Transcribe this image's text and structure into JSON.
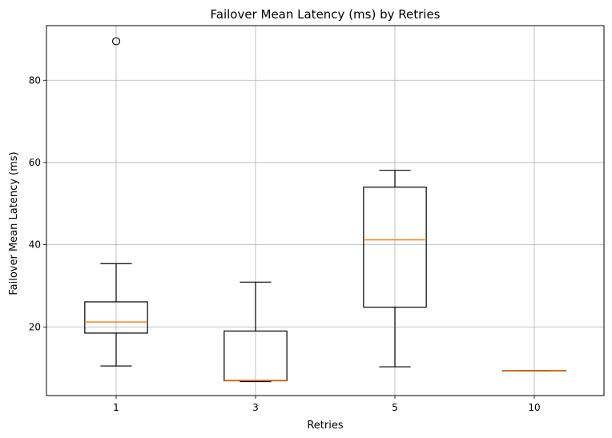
{
  "chart_data": {
    "type": "box",
    "title": "Failover Mean Latency (ms) by Retries",
    "xlabel": "Retries",
    "ylabel": "Failover Mean Latency (ms)",
    "categories": [
      "1",
      "3",
      "5",
      "10"
    ],
    "ylim": [
      3.3,
      93.3
    ],
    "yticks": [
      20,
      40,
      60,
      80
    ],
    "grid": true,
    "boxes": [
      {
        "category": "1",
        "whisker_low": 10.5,
        "q1": 18.5,
        "median": 21.2,
        "q3": 26.1,
        "whisker_high": 35.4,
        "outliers": [
          89.5
        ]
      },
      {
        "category": "3",
        "whisker_low": 6.7,
        "q1": 6.9,
        "median": 7.0,
        "q3": 19.0,
        "whisker_high": 30.9,
        "outliers": []
      },
      {
        "category": "5",
        "whisker_low": 10.3,
        "q1": 24.8,
        "median": 41.2,
        "q3": 54.0,
        "whisker_high": 58.1,
        "outliers": []
      },
      {
        "category": "10",
        "whisker_low": 9.3,
        "q1": 9.3,
        "median": 9.35,
        "q3": 9.4,
        "whisker_high": 9.4,
        "outliers": []
      }
    ],
    "colors": {
      "box": "#000000",
      "median": "#ff7f0e",
      "grid": "#b0b0b0"
    }
  }
}
